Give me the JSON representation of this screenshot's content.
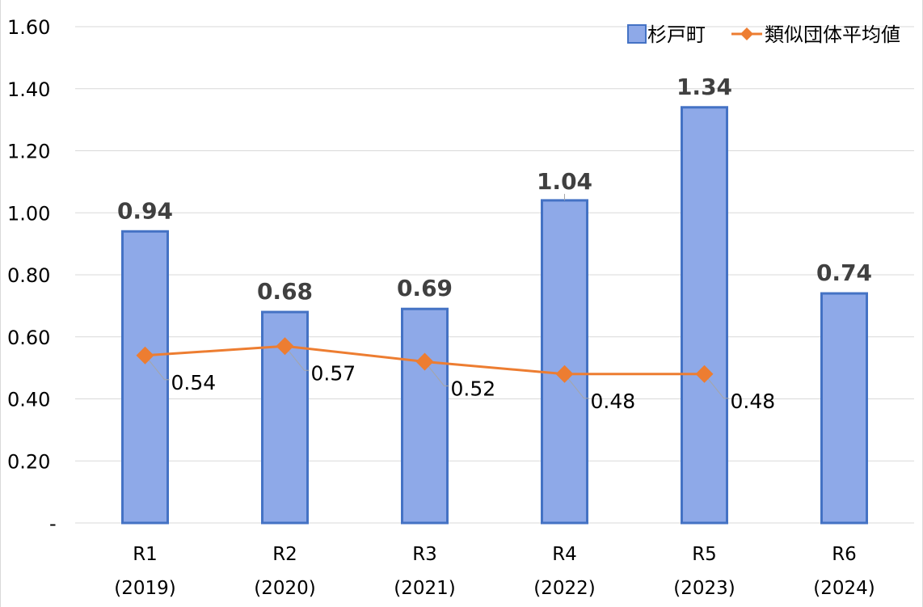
{
  "chart_data": {
    "type": "bar",
    "categories": [
      [
        "R1",
        "(2019)"
      ],
      [
        "R2",
        "(2020)"
      ],
      [
        "R3",
        "(2021)"
      ],
      [
        "R4",
        "(2022)"
      ],
      [
        "R5",
        "(2023)"
      ],
      [
        "R6",
        "(2024)"
      ]
    ],
    "series": [
      {
        "name": "杉戸町",
        "type": "bar",
        "values": [
          0.94,
          0.68,
          0.69,
          1.04,
          1.34,
          0.74
        ]
      },
      {
        "name": "類似団体平均値",
        "type": "line",
        "values": [
          0.54,
          0.57,
          0.52,
          0.48,
          0.48,
          null
        ]
      }
    ],
    "value_labels": {
      "bar": [
        "0.94",
        "0.68",
        "0.69",
        "1.04",
        "1.34",
        "0.74"
      ],
      "line": [
        "0.54",
        "0.57",
        "0.52",
        "0.48",
        "0.48",
        ""
      ]
    },
    "y_ticks": [
      {
        "value": 0,
        "label": "-"
      },
      {
        "value": 0.2,
        "label": "0.20"
      },
      {
        "value": 0.4,
        "label": "0.40"
      },
      {
        "value": 0.6,
        "label": "0.60"
      },
      {
        "value": 0.8,
        "label": "0.80"
      },
      {
        "value": 1.0,
        "label": "1.00"
      },
      {
        "value": 1.2,
        "label": "1.20"
      },
      {
        "value": 1.4,
        "label": "1.40"
      },
      {
        "value": 1.6,
        "label": "1.60"
      }
    ],
    "ylim": [
      0,
      1.6
    ],
    "grid": true,
    "legend_position": "top-right",
    "colors": {
      "bar_fill": "#8ea9e8",
      "bar_stroke": "#4472c4",
      "line": "#ed7d31",
      "grid": "#d9d9d9",
      "leader": "#a6a6a6"
    }
  }
}
